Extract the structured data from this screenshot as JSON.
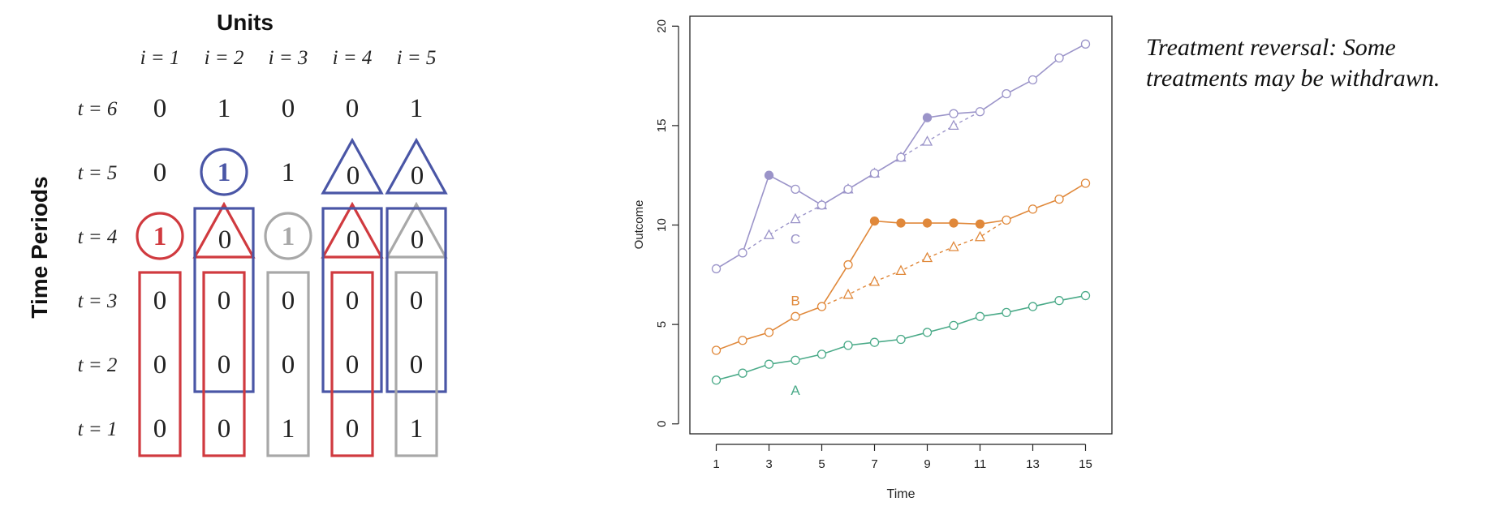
{
  "matrix": {
    "title": "Units",
    "ylabel": "Time Periods",
    "unit_labels": [
      "i = 1",
      "i = 2",
      "i = 3",
      "i = 4",
      "i = 5"
    ],
    "time_labels": [
      "t = 6",
      "t = 5",
      "t = 4",
      "t = 3",
      "t = 2",
      "t = 1"
    ],
    "values": [
      [
        "0",
        "1",
        "0",
        "0",
        "1"
      ],
      [
        "0",
        "1",
        "1",
        "0",
        "0"
      ],
      [
        "1",
        "0",
        "1",
        "0",
        "0"
      ],
      [
        "0",
        "0",
        "0",
        "0",
        "0"
      ],
      [
        "0",
        "0",
        "0",
        "0",
        "0"
      ],
      [
        "0",
        "0",
        "1",
        "0",
        "1"
      ]
    ],
    "colors": {
      "red": "#d03a3f",
      "blue": "#4a56a6",
      "gray": "#a8a8a8"
    },
    "annotations": [
      {
        "unit": 1,
        "time": 4,
        "shape": "circle",
        "color": "red"
      },
      {
        "unit": 1,
        "time_from": 1,
        "time_to": 3,
        "shape": "rect",
        "color": "red"
      },
      {
        "unit": 2,
        "time": 5,
        "shape": "circle",
        "color": "blue"
      },
      {
        "unit": 2,
        "time": 4,
        "shape": "triangle",
        "color": "red"
      },
      {
        "unit": 2,
        "time_from": 2,
        "time_to": 4,
        "shape": "rect",
        "color": "blue"
      },
      {
        "unit": 2,
        "time_from": 1,
        "time_to": 3,
        "shape": "rect",
        "color": "red"
      },
      {
        "unit": 3,
        "time": 4,
        "shape": "circle",
        "color": "gray"
      },
      {
        "unit": 3,
        "time_from": 1,
        "time_to": 3,
        "shape": "rect",
        "color": "gray"
      },
      {
        "unit": 4,
        "time": 5,
        "shape": "triangle",
        "color": "blue"
      },
      {
        "unit": 4,
        "time": 4,
        "shape": "triangle",
        "color": "red"
      },
      {
        "unit": 4,
        "time_from": 2,
        "time_to": 4,
        "shape": "rect",
        "color": "blue"
      },
      {
        "unit": 4,
        "time_from": 1,
        "time_to": 3,
        "shape": "rect",
        "color": "red"
      },
      {
        "unit": 5,
        "time": 5,
        "shape": "triangle",
        "color": "blue"
      },
      {
        "unit": 5,
        "time": 4,
        "shape": "triangle",
        "color": "gray"
      },
      {
        "unit": 5,
        "time_from": 2,
        "time_to": 4,
        "shape": "rect",
        "color": "blue"
      },
      {
        "unit": 5,
        "time_from": 1,
        "time_to": 3,
        "shape": "rect",
        "color": "gray"
      }
    ]
  },
  "chart_data": {
    "type": "line",
    "title": "",
    "xlabel": "Time",
    "ylabel": "Outcome",
    "xlim": [
      0,
      16
    ],
    "ylim": [
      -0.5,
      20.5
    ],
    "xticks": [
      1,
      3,
      5,
      7,
      9,
      11,
      13,
      15
    ],
    "yticks": [
      0,
      5,
      10,
      15,
      20
    ],
    "grid": false,
    "series": [
      {
        "name": "A",
        "color": "#4aaa88",
        "label_at": [
          4,
          1.7
        ],
        "observed": {
          "x": [
            1,
            2,
            3,
            4,
            5,
            6,
            7,
            8,
            9,
            10,
            11,
            12,
            13,
            14,
            15
          ],
          "y": [
            2.2,
            2.55,
            3.0,
            3.2,
            3.5,
            3.95,
            4.1,
            4.25,
            4.6,
            4.95,
            5.4,
            5.6,
            5.9,
            6.2,
            6.45
          ]
        },
        "treated_points": {
          "x": [],
          "y": []
        },
        "counterfactual": {
          "x": [],
          "y": []
        }
      },
      {
        "name": "B",
        "color": "#e0883a",
        "label_at": [
          4,
          6.2
        ],
        "observed": {
          "x": [
            1,
            2,
            3,
            4,
            5,
            6,
            7,
            8,
            9,
            10,
            11,
            12,
            13,
            14,
            15
          ],
          "y": [
            3.7,
            4.2,
            4.6,
            5.4,
            5.9,
            8.0,
            10.2,
            10.1,
            10.1,
            10.1,
            10.05,
            10.25,
            10.8,
            11.3,
            12.1
          ]
        },
        "treated_points": {
          "x": [
            7,
            8,
            9,
            10,
            11
          ],
          "y": [
            10.2,
            10.1,
            10.1,
            10.1,
            10.05
          ]
        },
        "counterfactual": {
          "x": [
            5,
            6,
            7,
            8,
            9,
            10,
            11,
            12
          ],
          "y": [
            5.9,
            6.5,
            7.15,
            7.7,
            8.35,
            8.9,
            9.4,
            10.25
          ]
        }
      },
      {
        "name": "C",
        "color": "#9b94c9",
        "label_at": [
          4,
          9.3
        ],
        "observed": {
          "x": [
            1,
            2,
            3,
            4,
            5,
            6,
            7,
            8,
            9,
            10,
            11,
            12,
            13,
            14,
            15
          ],
          "y": [
            7.8,
            8.6,
            12.5,
            11.8,
            11.0,
            11.8,
            12.6,
            13.4,
            15.4,
            15.6,
            15.7,
            16.6,
            17.3,
            18.4,
            19.1
          ]
        },
        "treated_points": {
          "x": [
            3,
            9
          ],
          "y": [
            12.5,
            15.4
          ]
        },
        "counterfactual": {
          "x": [
            2,
            3,
            4,
            5,
            6,
            7,
            8,
            9,
            10,
            11
          ],
          "y": [
            8.6,
            9.5,
            10.3,
            11.0,
            11.8,
            12.6,
            13.4,
            14.2,
            15.0,
            15.7
          ]
        }
      }
    ]
  },
  "caption": "Treatment reversal: Some treatments may be withdrawn."
}
